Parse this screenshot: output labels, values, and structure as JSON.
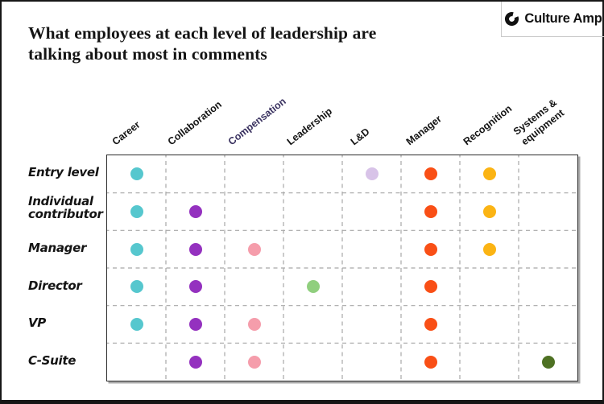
{
  "header": {
    "title_line1": "What employees at each level of leadership are",
    "title_line2": "talking about most in comments",
    "logo": {
      "text": "Culture Amp",
      "icon": "culture-amp-c-icon"
    }
  },
  "chart_data": {
    "type": "heatmap",
    "title": "What employees at each level of leadership are talking about most in comments",
    "xlabel": "",
    "ylabel": "",
    "legend": "none",
    "grid_style": "dashed internal lines, solid outer border",
    "marker": "filled circle, one color per topic category",
    "categories": [
      {
        "name": "Career",
        "label": "Career",
        "color": "#56C7CE",
        "label_color": "#141414"
      },
      {
        "name": "Collaboration",
        "label": "Collaboration",
        "color": "#9431BF",
        "label_color": "#141414"
      },
      {
        "name": "Compensation",
        "label": "Compensation",
        "color": "#F59DAB",
        "label_color": "#3A3260"
      },
      {
        "name": "Leadership",
        "label": "Leadership",
        "color": "#90CF7E",
        "label_color": "#141414"
      },
      {
        "name": "L&D",
        "label": "L&D",
        "color": "#D8C3E8",
        "label_color": "#141414"
      },
      {
        "name": "Manager",
        "label": "Manager",
        "color": "#F94F16",
        "label_color": "#141414"
      },
      {
        "name": "Recognition",
        "label": "Recognition",
        "color": "#FBB414",
        "label_color": "#141414"
      },
      {
        "name": "Systems & equipment",
        "label": "Systems &\nequipment",
        "color": "#4E7123",
        "label_color": "#141414"
      }
    ],
    "rows": [
      {
        "level": "Entry level",
        "topics": [
          "Career",
          "L&D",
          "Manager",
          "Recognition"
        ]
      },
      {
        "level": "Individual contributor",
        "topics": [
          "Career",
          "Collaboration",
          "Manager",
          "Recognition"
        ]
      },
      {
        "level": "Manager",
        "topics": [
          "Career",
          "Collaboration",
          "Compensation",
          "Manager",
          "Recognition"
        ]
      },
      {
        "level": "Director",
        "topics": [
          "Career",
          "Collaboration",
          "Leadership",
          "Manager"
        ]
      },
      {
        "level": "VP",
        "topics": [
          "Career",
          "Collaboration",
          "Compensation",
          "Manager"
        ]
      },
      {
        "level": "C-Suite",
        "topics": [
          "Collaboration",
          "Compensation",
          "Manager",
          "Systems & equipment"
        ]
      }
    ]
  }
}
